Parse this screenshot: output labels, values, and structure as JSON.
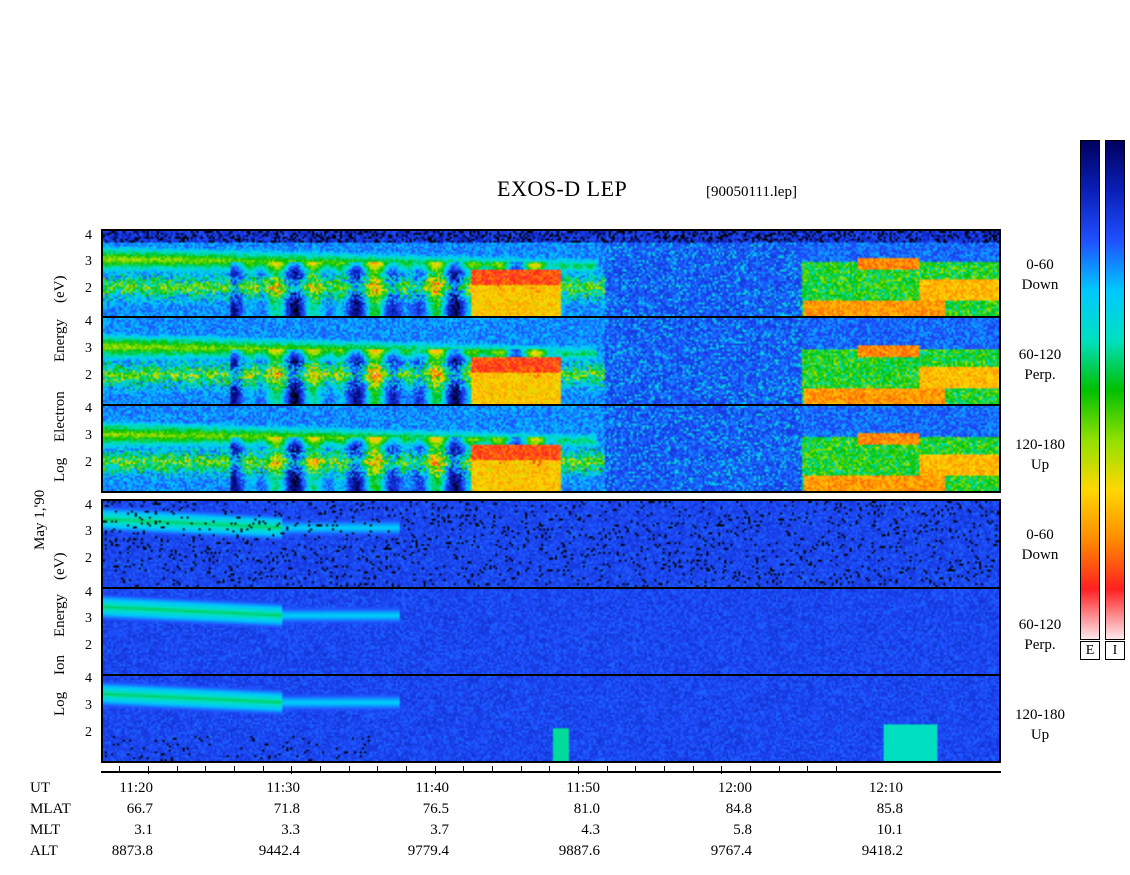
{
  "chart_data": {
    "type": "heatmap",
    "title": "EXOS-D LEP",
    "file": "[90050111.lep]",
    "date_label": "May  1,'90",
    "x_ticks": [
      "11:20",
      "11:30",
      "11:40",
      "11:50",
      "12:00",
      "12:10"
    ],
    "panels": [
      {
        "group": "Electron",
        "ylabel": "Log Electron Energy (eV)",
        "ylabel_parts": [
          "Log",
          "Electron",
          "Energy",
          "(eV)"
        ],
        "yticks": [
          "4",
          "3",
          "2"
        ],
        "ylim": [
          1,
          4
        ],
        "subpanels": [
          {
            "label_line1": "0-60",
            "label_line2": "Down"
          },
          {
            "label_line1": "60-120",
            "label_line2": "Perp."
          },
          {
            "label_line1": "120-180",
            "label_line2": "Up"
          }
        ]
      },
      {
        "group": "Ion",
        "ylabel": "Log Ion Energy (eV)",
        "ylabel_parts": [
          "Log",
          "Ion",
          "Energy",
          "(eV)"
        ],
        "yticks": [
          "4",
          "3",
          "2"
        ],
        "ylim": [
          1,
          4
        ],
        "subpanels": [
          {
            "label_line1": "0-60",
            "label_line2": "Down"
          },
          {
            "label_line1": "60-120",
            "label_line2": "Perp."
          },
          {
            "label_line1": "120-180",
            "label_line2": "Up"
          }
        ]
      }
    ],
    "ephemeris": {
      "rows": [
        {
          "name": "UT",
          "values": [
            "11:20",
            "11:30",
            "11:40",
            "11:50",
            "12:00",
            "12:10"
          ]
        },
        {
          "name": "MLAT",
          "values": [
            "66.7",
            "71.8",
            "76.5",
            "81.0",
            "84.8",
            "85.8"
          ]
        },
        {
          "name": "MLT",
          "values": [
            "3.1",
            "3.3",
            "3.7",
            "4.3",
            "5.8",
            "10.1"
          ]
        },
        {
          "name": "ALT",
          "values": [
            "8873.8",
            "9442.4",
            "9779.4",
            "9887.6",
            "9767.4",
            "9418.2"
          ]
        }
      ]
    },
    "colorbars": [
      {
        "label": "E"
      },
      {
        "label": "I"
      }
    ],
    "colormap": [
      "#ffe8ee",
      "#ff2020",
      "#ff8c00",
      "#ffd800",
      "#90e000",
      "#00c000",
      "#00e0c0",
      "#00c8ff",
      "#2050ff",
      "#0a1fb8",
      "#000060"
    ]
  }
}
